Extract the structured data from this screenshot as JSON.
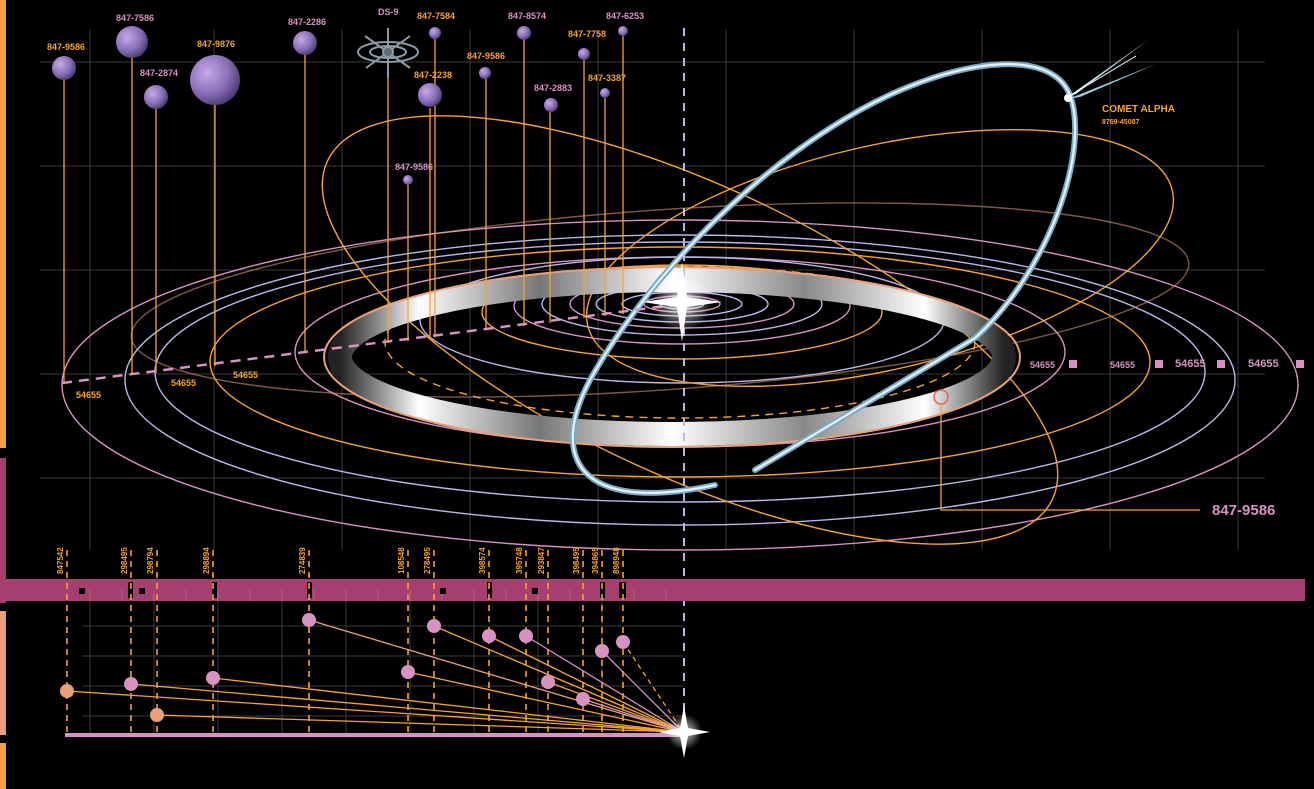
{
  "colors": {
    "orange": "#f5a23a",
    "pink": "#d892c2",
    "lavender": "#b9b8e8",
    "peach": "#e8a07a",
    "magenta_bar": "#a63e70",
    "comet": "#bfe0f0",
    "grid": "#444444"
  },
  "planets": [
    {
      "id": "847-9586",
      "label": "847-9586",
      "label_color": "orange"
    },
    {
      "id": "847-7586",
      "label": "847-7586",
      "label_color": "pink"
    },
    {
      "id": "847-2874",
      "label": "847-2874",
      "label_color": "pink"
    },
    {
      "id": "847-9876",
      "label": "847-9876",
      "label_color": "orange"
    },
    {
      "id": "847-2286",
      "label": "847-2286",
      "label_color": "pink"
    },
    {
      "id": "ds-9",
      "label": "DS-9",
      "label_color": "pink"
    },
    {
      "id": "847-9586b",
      "label": "847-9586",
      "label_color": "pink"
    },
    {
      "id": "847-7584",
      "label": "847-7584",
      "label_color": "orange"
    },
    {
      "id": "847-2238",
      "label": "847-2238",
      "label_color": "orange"
    },
    {
      "id": "847-9586c",
      "label": "847-9586",
      "label_color": "orange"
    },
    {
      "id": "847-8574",
      "label": "847-8574",
      "label_color": "pink"
    },
    {
      "id": "847-2883",
      "label": "847-2883",
      "label_color": "pink"
    },
    {
      "id": "847-7758",
      "label": "847-7758",
      "label_color": "orange"
    },
    {
      "id": "847-3387",
      "label": "847-3387",
      "label_color": "orange"
    },
    {
      "id": "847-6253",
      "label": "847-6253",
      "label_color": "pink"
    }
  ],
  "comet": {
    "name": "COMET ALPHA",
    "code": "8769-45087"
  },
  "callout": {
    "label": "847-9586"
  },
  "orbit_values": [
    "54655",
    "54655",
    "54655",
    "54655"
  ],
  "right_values": [
    "54655",
    "54655",
    "54655",
    "54655"
  ],
  "timeline_labels": [
    "847542",
    "298495",
    "298794",
    "298894",
    "274839",
    "108548",
    "278495",
    "398574",
    "395748",
    "293847",
    "398495",
    "394865",
    "898948"
  ]
}
